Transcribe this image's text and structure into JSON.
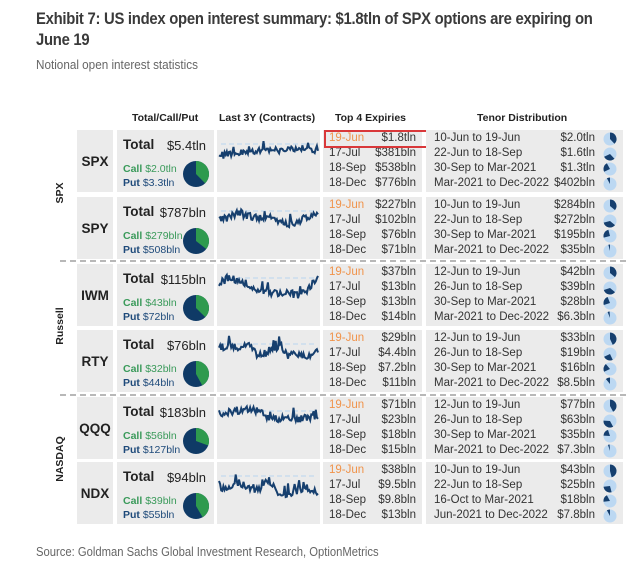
{
  "header": {
    "title": "Exhibit 7: US index open interest summary: $1.8tln of SPX options are expiring on June 19",
    "subtitle": "Notional open interest statistics"
  },
  "columns": {
    "total_call_put": "Total/Call/Put",
    "last_3y": "Last 3Y (Contracts)",
    "top4": "Top 4 Expiries",
    "tenor": "Tenor Distribution"
  },
  "colors": {
    "call": "#3a9a5a",
    "put": "#1e4a7a",
    "pie_call": "#2e9a4e",
    "pie_put": "#0f3a66",
    "sparkline": "#163f6e",
    "highlight_date": "#f0934a",
    "highlight_box": "#d9383a",
    "mini_pie_bg": "#bcd8f2",
    "mini_pie_fg": "#163f6e"
  },
  "groups": [
    {
      "label": "SPX"
    },
    {
      "label": "Russell"
    },
    {
      "label": "NASDAQ"
    }
  ],
  "labels": {
    "total": "Total",
    "call": "Call",
    "put": "Put"
  },
  "rows": [
    {
      "ticker": "SPX",
      "group": "SPX",
      "total": "$5.4tln",
      "call": "$2.0tln",
      "put": "$3.3tln",
      "call_share": 0.377,
      "expiries": [
        {
          "date": "19-Jun",
          "value": "$1.8tln",
          "highlighted": true
        },
        {
          "date": "17-Jul",
          "value": "$381bln"
        },
        {
          "date": "18-Sep",
          "value": "$538bln"
        },
        {
          "date": "18-Dec",
          "value": "$776bln"
        }
      ],
      "tenors": [
        {
          "range": "10-Jun to 19-Jun",
          "value": "$2.0tln",
          "share": 0.38
        },
        {
          "range": "22-Jun to 18-Sep",
          "value": "$1.6tln",
          "share": 0.3
        },
        {
          "range": "30-Sep to Mar-2021",
          "value": "$1.3tln",
          "share": 0.24
        },
        {
          "range": "Mar-2021 to Dec-2022",
          "value": "$402bln",
          "share": 0.08
        }
      ]
    },
    {
      "ticker": "SPY",
      "group": "SPX",
      "total": "$787bln",
      "call": "$279bln",
      "put": "$508bln",
      "call_share": 0.355,
      "expiries": [
        {
          "date": "19-Jun",
          "value": "$227bln"
        },
        {
          "date": "17-Jul",
          "value": "$102bln"
        },
        {
          "date": "18-Sep",
          "value": "$76bln"
        },
        {
          "date": "18-Dec",
          "value": "$71bln"
        }
      ],
      "tenors": [
        {
          "range": "10-Jun to 19-Jun",
          "value": "$284bln",
          "share": 0.36
        },
        {
          "range": "22-Jun to 18-Sep",
          "value": "$272bln",
          "share": 0.35
        },
        {
          "range": "30-Sep to Mar-2021",
          "value": "$195bln",
          "share": 0.25
        },
        {
          "range": "Mar-2021 to Dec-2022",
          "value": "$35bln",
          "share": 0.04
        }
      ]
    },
    {
      "ticker": "IWM",
      "group": "Russell",
      "total": "$115bln",
      "call": "$43bln",
      "put": "$72bln",
      "call_share": 0.374,
      "expiries": [
        {
          "date": "19-Jun",
          "value": "$37bln"
        },
        {
          "date": "17-Jul",
          "value": "$13bln"
        },
        {
          "date": "18-Sep",
          "value": "$13bln"
        },
        {
          "date": "18-Dec",
          "value": "$14bln"
        }
      ],
      "tenors": [
        {
          "range": "12-Jun to 19-Jun",
          "value": "$42bln",
          "share": 0.36
        },
        {
          "range": "26-Jun to 18-Sep",
          "value": "$39bln",
          "share": 0.34
        },
        {
          "range": "30-Sep to Mar-2021",
          "value": "$28bln",
          "share": 0.24
        },
        {
          "range": "Mar-2021 to Dec-2022",
          "value": "$6.3bln",
          "share": 0.05
        }
      ]
    },
    {
      "ticker": "RTY",
      "group": "Russell",
      "total": "$76bln",
      "call": "$32bln",
      "put": "$44bln",
      "call_share": 0.42,
      "expiries": [
        {
          "date": "19-Jun",
          "value": "$29bln"
        },
        {
          "date": "17-Jul",
          "value": "$4.4bln"
        },
        {
          "date": "18-Sep",
          "value": "$7.2bln"
        },
        {
          "date": "18-Dec",
          "value": "$11bln"
        }
      ],
      "tenors": [
        {
          "range": "12-Jun to 19-Jun",
          "value": "$33bln",
          "share": 0.43
        },
        {
          "range": "26-Jun to 18-Sep",
          "value": "$19bln",
          "share": 0.25
        },
        {
          "range": "30-Sep to Mar-2021",
          "value": "$16bln",
          "share": 0.21
        },
        {
          "range": "Mar-2021 to Dec-2022",
          "value": "$8.5bln",
          "share": 0.11
        }
      ]
    },
    {
      "ticker": "QQQ",
      "group": "NASDAQ",
      "total": "$183bln",
      "call": "$56bln",
      "put": "$127bln",
      "call_share": 0.306,
      "expiries": [
        {
          "date": "19-Jun",
          "value": "$71bln"
        },
        {
          "date": "17-Jul",
          "value": "$23bln"
        },
        {
          "date": "18-Sep",
          "value": "$18bln"
        },
        {
          "date": "18-Dec",
          "value": "$15bln"
        }
      ],
      "tenors": [
        {
          "range": "12-Jun to 19-Jun",
          "value": "$77bln",
          "share": 0.42
        },
        {
          "range": "26-Jun to 18-Sep",
          "value": "$63bln",
          "share": 0.34
        },
        {
          "range": "30-Sep to Mar-2021",
          "value": "$35bln",
          "share": 0.19
        },
        {
          "range": "Mar-2021 to Dec-2022",
          "value": "$7.3bln",
          "share": 0.04
        }
      ]
    },
    {
      "ticker": "NDX",
      "group": "NASDAQ",
      "total": "$94bln",
      "call": "$39bln",
      "put": "$55bln",
      "call_share": 0.415,
      "expiries": [
        {
          "date": "19-Jun",
          "value": "$38bln"
        },
        {
          "date": "17-Jul",
          "value": "$9.5bln"
        },
        {
          "date": "18-Sep",
          "value": "$9.8bln"
        },
        {
          "date": "18-Dec",
          "value": "$13bln"
        }
      ],
      "tenors": [
        {
          "range": "10-Jun to 19-Jun",
          "value": "$43bln",
          "share": 0.46
        },
        {
          "range": "22-Jun to 18-Sep",
          "value": "$25bln",
          "share": 0.27
        },
        {
          "range": "16-Oct to Mar-2021",
          "value": "$18bln",
          "share": 0.19
        },
        {
          "range": "Jun-2021 to Dec-2022",
          "value": "$7.8bln",
          "share": 0.08
        }
      ]
    }
  ],
  "footer": {
    "source": "Source: Goldman Sachs Global Investment Research, OptionMetrics"
  }
}
